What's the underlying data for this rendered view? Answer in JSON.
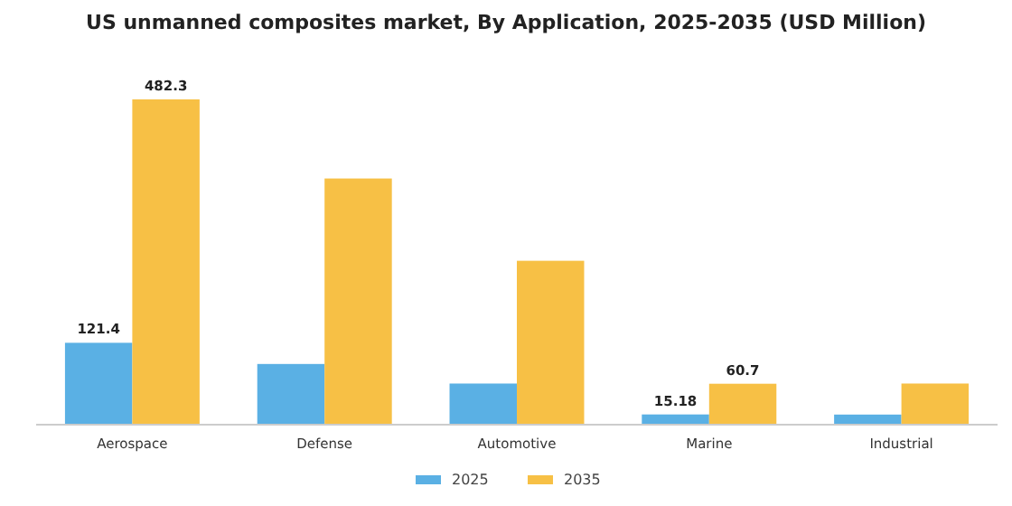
{
  "chart_data": {
    "type": "bar",
    "title": "US unmanned composites market, By Application, 2025-2035 (USD Million)",
    "categories": [
      "Aerospace",
      "Defense",
      "Automotive",
      "Marine",
      "Industrial"
    ],
    "series": [
      {
        "name": "2025",
        "color": "#5ab0e4",
        "values": [
          121.4,
          90,
          61,
          15.18,
          15
        ],
        "value_labels": [
          "121.4",
          null,
          null,
          "15.18",
          null
        ]
      },
      {
        "name": "2035",
        "color": "#f7c045",
        "values": [
          482.3,
          365,
          243,
          60.7,
          61
        ],
        "value_labels": [
          "482.3",
          null,
          null,
          "60.7",
          null
        ]
      }
    ],
    "tick_labels": "x",
    "legend": "bottom"
  }
}
